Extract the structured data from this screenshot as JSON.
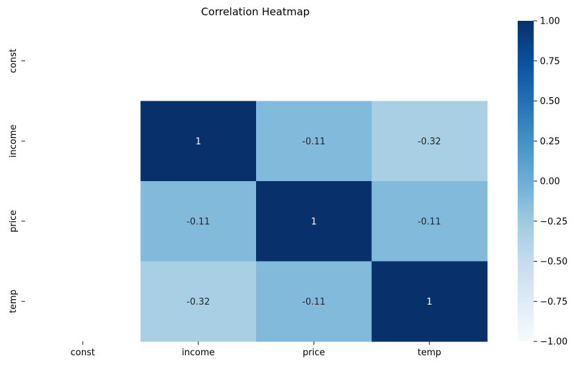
{
  "chart_data": {
    "type": "heatmap",
    "title": "Correlation Heatmap",
    "x_categories": [
      "const",
      "income",
      "price",
      "temp"
    ],
    "y_categories": [
      "const",
      "income",
      "price",
      "temp"
    ],
    "values": [
      [
        null,
        null,
        null,
        null
      ],
      [
        null,
        1,
        -0.11,
        -0.32
      ],
      [
        null,
        -0.11,
        1,
        -0.11
      ],
      [
        null,
        -0.32,
        -0.11,
        1
      ]
    ],
    "cell_labels": [
      [
        "",
        "",
        "",
        ""
      ],
      [
        "",
        "1",
        "-0.11",
        "-0.32"
      ],
      [
        "",
        "-0.11",
        "1",
        "-0.11"
      ],
      [
        "",
        "-0.32",
        "-0.11",
        "1"
      ]
    ],
    "colorbar": {
      "min": -1.0,
      "max": 1.0,
      "ticks": [
        1.0,
        0.75,
        0.5,
        0.25,
        0.0,
        -0.25,
        -0.5,
        -0.75,
        -1.0
      ],
      "tick_labels": [
        "1.00",
        "0.75",
        "0.50",
        "0.25",
        "0.00",
        "−0.25",
        "−0.50",
        "−0.75",
        "−1.00"
      ]
    },
    "colormap": "Blues",
    "colors": {
      "low": "#f7fbff",
      "high": "#08306b"
    },
    "xlabel": "",
    "ylabel": "",
    "legend": "colorbar-right"
  }
}
